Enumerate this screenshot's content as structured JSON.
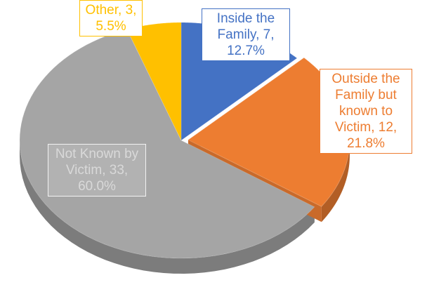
{
  "chart_data": {
    "type": "pie3d",
    "categories": [
      "Inside the Family",
      "Outside the Family but known to Victim",
      "Not Known by Victim",
      "Other"
    ],
    "values": [
      7,
      12,
      33,
      3
    ],
    "percentages": [
      12.7,
      21.8,
      60.0,
      5.5
    ],
    "percentage_labels": [
      "12.7%",
      "21.8%",
      "60.0%",
      "5.5%"
    ],
    "colors": [
      "#4472c4",
      "#ed7d31",
      "#a5a5a5",
      "#ffc000"
    ]
  }
}
